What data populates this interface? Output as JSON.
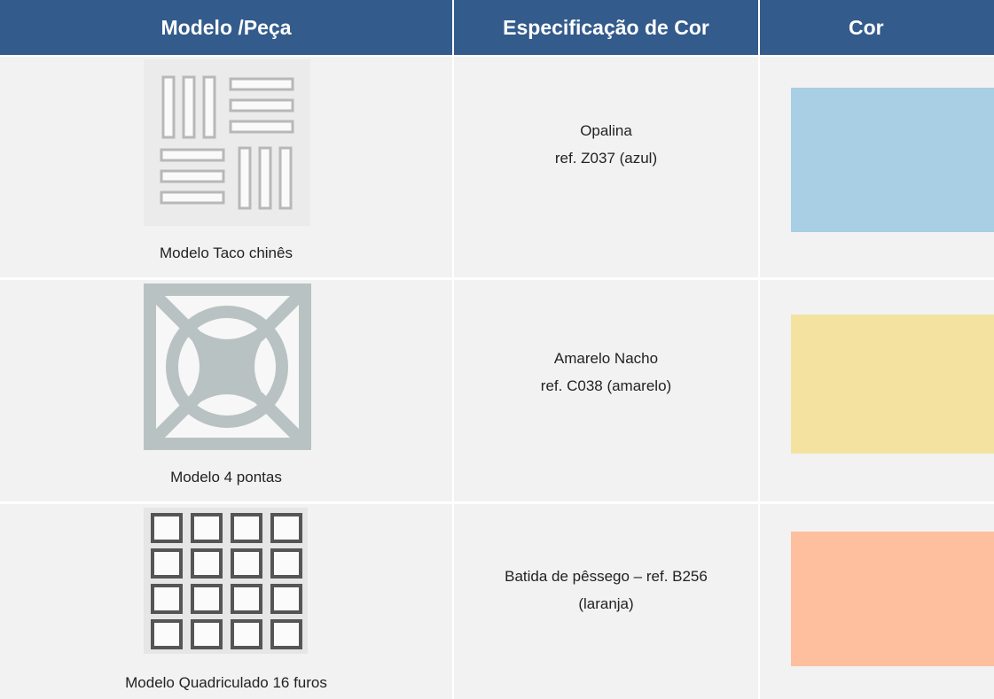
{
  "table": {
    "header": [
      "Modelo /Peça",
      "Especificação de Cor",
      "Cor"
    ],
    "rows": [
      {
        "model": "Modelo Taco chinês",
        "spec": [
          "Opalina",
          "ref. Z037 (azul)"
        ]
      },
      {
        "model": "Modelo 4 pontas",
        "spec": [
          "Amarelo Nacho",
          "ref. C038 (amarelo)"
        ]
      },
      {
        "model": "Modelo Quadriculado 16 furos",
        "spec": [
          "Batida de pêssego – ref. B256",
          "(laranja)"
        ]
      }
    ]
  }
}
